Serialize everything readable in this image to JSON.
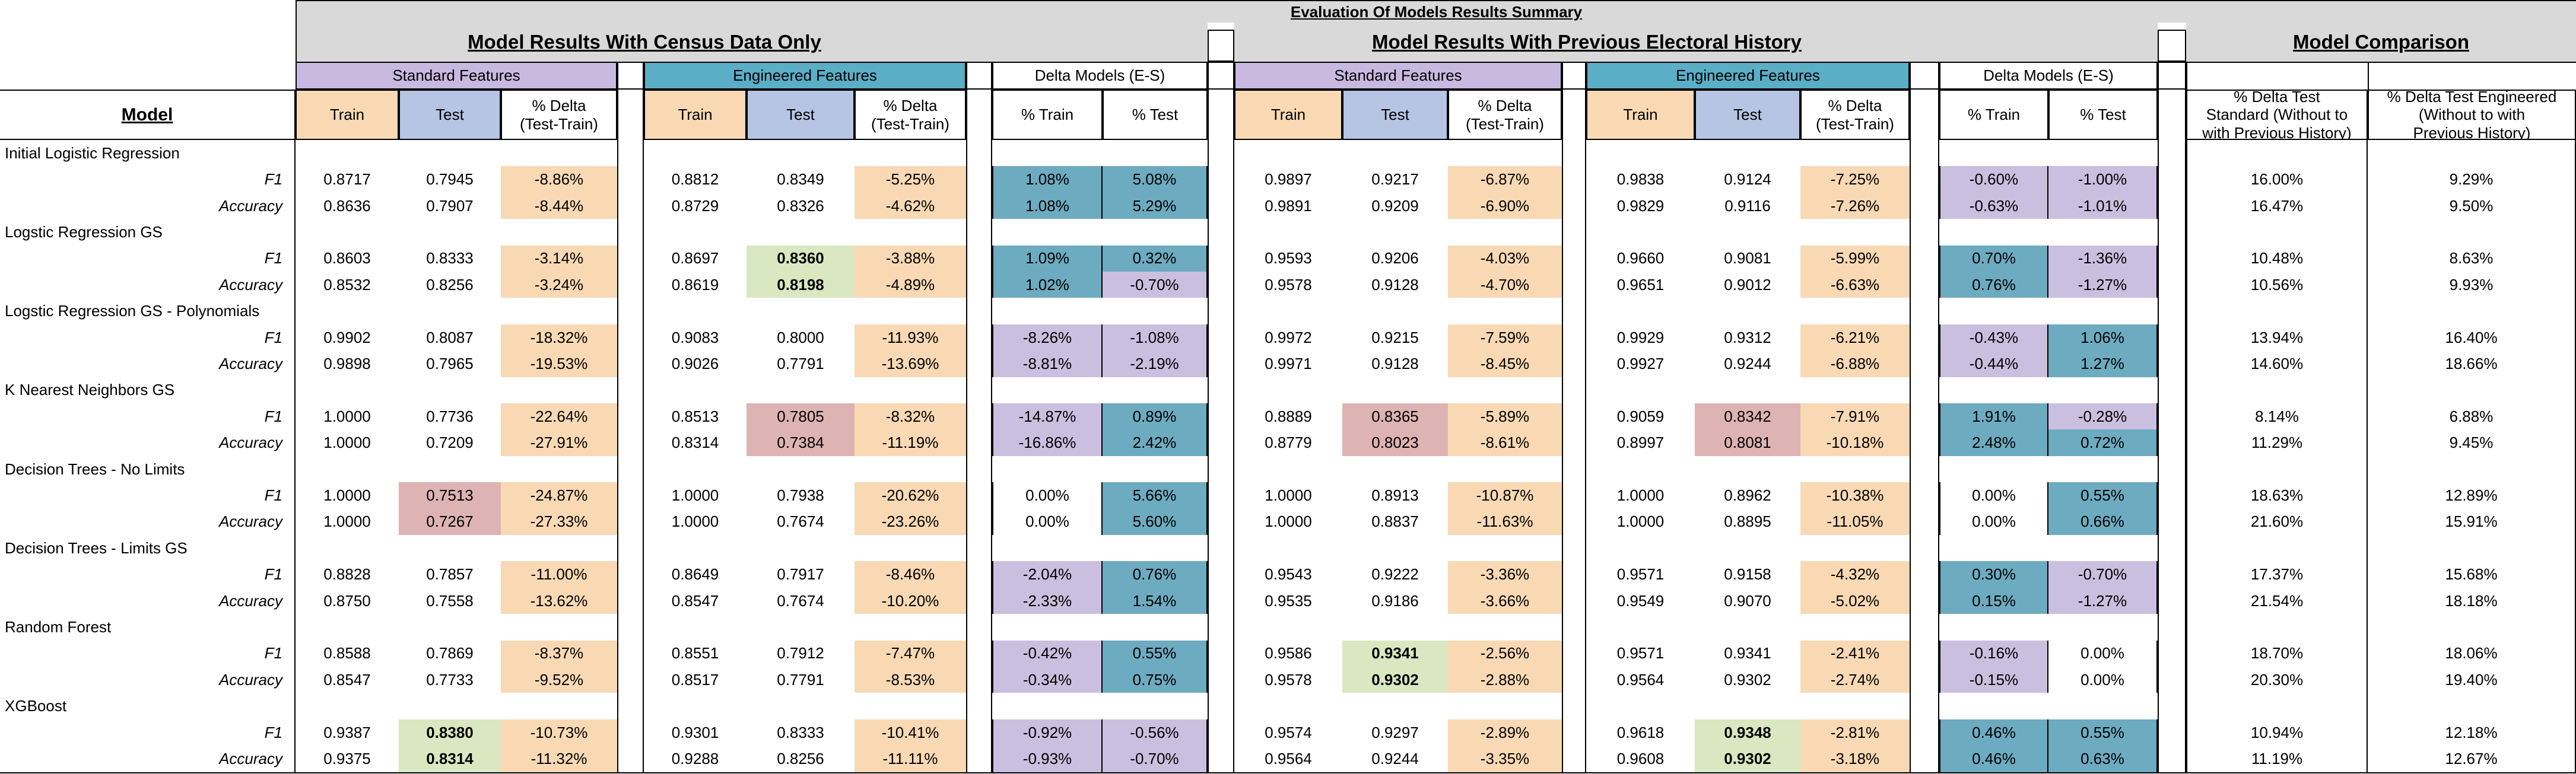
{
  "title": "Evaluation Of Models Results Summary",
  "sections": {
    "census": "Model Results With Census Data Only",
    "electoral": "Model Results With Previous Electoral History",
    "comparison": "Model Comparison"
  },
  "group_headers": {
    "standard": "Standard Features",
    "engineered": "Engineered Features",
    "delta_models": "Delta Models (E-S)"
  },
  "column_headers": {
    "model": "Model",
    "train": "Train",
    "test": "Test",
    "delta_line1": "% Delta",
    "delta_line2": "(Test-Train)",
    "pct_train": "% Train",
    "pct_test": "% Test",
    "cmp_std_line1": "% Delta Test",
    "cmp_std_line2": "Standard (Without to",
    "cmp_std_line3": "with Previous History)",
    "cmp_eng_line1": "% Delta Test Engineered",
    "cmp_eng_line2": "(Without to with",
    "cmp_eng_line3": "Previous History)"
  },
  "colors": {
    "title_band": "#d9d9d9",
    "standard_header": "#c9b9e0",
    "engineered_header": "#5aaec6",
    "train_header": "#f8d9b4",
    "test_header": "#b5c5e3",
    "delta_cell": "#f8d9b4",
    "delta_negative_model": "#cbbfe0",
    "delta_positive_model": "#6dabc0",
    "best_highlight": "#d9e8c0",
    "worst_highlight": "#deb3b3"
  },
  "models": [
    {
      "name": "Initial Logistic Regression",
      "rows": [
        {
          "metric": "F1",
          "census": {
            "std": [
              "0.8717",
              "0.7945",
              "-8.86%"
            ],
            "eng": [
              "0.8812",
              "0.8349",
              "-5.25%"
            ],
            "delta": [
              "1.08%",
              "5.08%"
            ]
          },
          "electoral": {
            "std": [
              "0.9897",
              "0.9217",
              "-6.87%"
            ],
            "eng": [
              "0.9838",
              "0.9124",
              "-7.25%"
            ],
            "delta": [
              "-0.60%",
              "-1.00%"
            ]
          },
          "cmp": [
            "16.00%",
            "9.29%"
          ]
        },
        {
          "metric": "Accuracy",
          "census": {
            "std": [
              "0.8636",
              "0.7907",
              "-8.44%"
            ],
            "eng": [
              "0.8729",
              "0.8326",
              "-4.62%"
            ],
            "delta": [
              "1.08%",
              "5.29%"
            ]
          },
          "electoral": {
            "std": [
              "0.9891",
              "0.9209",
              "-6.90%"
            ],
            "eng": [
              "0.9829",
              "0.9116",
              "-7.26%"
            ],
            "delta": [
              "-0.63%",
              "-1.01%"
            ]
          },
          "cmp": [
            "16.47%",
            "9.50%"
          ]
        }
      ]
    },
    {
      "name": "Logstic Regression GS",
      "rows": [
        {
          "metric": "F1",
          "census": {
            "std": [
              "0.8603",
              "0.8333",
              "-3.14%"
            ],
            "eng": [
              "0.8697",
              "0.8360",
              "-3.88%"
            ],
            "delta": [
              "1.09%",
              "0.32%"
            ]
          },
          "electoral": {
            "std": [
              "0.9593",
              "0.9206",
              "-4.03%"
            ],
            "eng": [
              "0.9660",
              "0.9081",
              "-5.99%"
            ],
            "delta": [
              "0.70%",
              "-1.36%"
            ]
          },
          "cmp": [
            "10.48%",
            "8.63%"
          ]
        },
        {
          "metric": "Accuracy",
          "census": {
            "std": [
              "0.8532",
              "0.8256",
              "-3.24%"
            ],
            "eng": [
              "0.8619",
              "0.8198",
              "-4.89%"
            ],
            "delta": [
              "1.02%",
              "-0.70%"
            ]
          },
          "electoral": {
            "std": [
              "0.9578",
              "0.9128",
              "-4.70%"
            ],
            "eng": [
              "0.9651",
              "0.9012",
              "-6.63%"
            ],
            "delta": [
              "0.76%",
              "-1.27%"
            ]
          },
          "cmp": [
            "10.56%",
            "9.93%"
          ]
        }
      ]
    },
    {
      "name": "Logstic Regression GS - Polynomials",
      "rows": [
        {
          "metric": "F1",
          "census": {
            "std": [
              "0.9902",
              "0.8087",
              "-18.32%"
            ],
            "eng": [
              "0.9083",
              "0.8000",
              "-11.93%"
            ],
            "delta": [
              "-8.26%",
              "-1.08%"
            ]
          },
          "electoral": {
            "std": [
              "0.9972",
              "0.9215",
              "-7.59%"
            ],
            "eng": [
              "0.9929",
              "0.9312",
              "-6.21%"
            ],
            "delta": [
              "-0.43%",
              "1.06%"
            ]
          },
          "cmp": [
            "13.94%",
            "16.40%"
          ]
        },
        {
          "metric": "Accuracy",
          "census": {
            "std": [
              "0.9898",
              "0.7965",
              "-19.53%"
            ],
            "eng": [
              "0.9026",
              "0.7791",
              "-13.69%"
            ],
            "delta": [
              "-8.81%",
              "-2.19%"
            ]
          },
          "electoral": {
            "std": [
              "0.9971",
              "0.9128",
              "-8.45%"
            ],
            "eng": [
              "0.9927",
              "0.9244",
              "-6.88%"
            ],
            "delta": [
              "-0.44%",
              "1.27%"
            ]
          },
          "cmp": [
            "14.60%",
            "18.66%"
          ]
        }
      ]
    },
    {
      "name": "K Nearest Neighbors GS",
      "rows": [
        {
          "metric": "F1",
          "census": {
            "std": [
              "1.0000",
              "0.7736",
              "-22.64%"
            ],
            "eng": [
              "0.8513",
              "0.7805",
              "-8.32%"
            ],
            "delta": [
              "-14.87%",
              "0.89%"
            ]
          },
          "electoral": {
            "std": [
              "0.8889",
              "0.8365",
              "-5.89%"
            ],
            "eng": [
              "0.9059",
              "0.8342",
              "-7.91%"
            ],
            "delta": [
              "1.91%",
              "-0.28%"
            ]
          },
          "cmp": [
            "8.14%",
            "6.88%"
          ]
        },
        {
          "metric": "Accuracy",
          "census": {
            "std": [
              "1.0000",
              "0.7209",
              "-27.91%"
            ],
            "eng": [
              "0.8314",
              "0.7384",
              "-11.19%"
            ],
            "delta": [
              "-16.86%",
              "2.42%"
            ]
          },
          "electoral": {
            "std": [
              "0.8779",
              "0.8023",
              "-8.61%"
            ],
            "eng": [
              "0.8997",
              "0.8081",
              "-10.18%"
            ],
            "delta": [
              "2.48%",
              "0.72%"
            ]
          },
          "cmp": [
            "11.29%",
            "9.45%"
          ]
        }
      ]
    },
    {
      "name": "Decision Trees - No Limits",
      "rows": [
        {
          "metric": "F1",
          "census": {
            "std": [
              "1.0000",
              "0.7513",
              "-24.87%"
            ],
            "eng": [
              "1.0000",
              "0.7938",
              "-20.62%"
            ],
            "delta": [
              "0.00%",
              "5.66%"
            ]
          },
          "electoral": {
            "std": [
              "1.0000",
              "0.8913",
              "-10.87%"
            ],
            "eng": [
              "1.0000",
              "0.8962",
              "-10.38%"
            ],
            "delta": [
              "0.00%",
              "0.55%"
            ]
          },
          "cmp": [
            "18.63%",
            "12.89%"
          ]
        },
        {
          "metric": "Accuracy",
          "census": {
            "std": [
              "1.0000",
              "0.7267",
              "-27.33%"
            ],
            "eng": [
              "1.0000",
              "0.7674",
              "-23.26%"
            ],
            "delta": [
              "0.00%",
              "5.60%"
            ]
          },
          "electoral": {
            "std": [
              "1.0000",
              "0.8837",
              "-11.63%"
            ],
            "eng": [
              "1.0000",
              "0.8895",
              "-11.05%"
            ],
            "delta": [
              "0.00%",
              "0.66%"
            ]
          },
          "cmp": [
            "21.60%",
            "15.91%"
          ]
        }
      ]
    },
    {
      "name": "Decision Trees -  Limits GS",
      "rows": [
        {
          "metric": "F1",
          "census": {
            "std": [
              "0.8828",
              "0.7857",
              "-11.00%"
            ],
            "eng": [
              "0.8649",
              "0.7917",
              "-8.46%"
            ],
            "delta": [
              "-2.04%",
              "0.76%"
            ]
          },
          "electoral": {
            "std": [
              "0.9543",
              "0.9222",
              "-3.36%"
            ],
            "eng": [
              "0.9571",
              "0.9158",
              "-4.32%"
            ],
            "delta": [
              "0.30%",
              "-0.70%"
            ]
          },
          "cmp": [
            "17.37%",
            "15.68%"
          ]
        },
        {
          "metric": "Accuracy",
          "census": {
            "std": [
              "0.8750",
              "0.7558",
              "-13.62%"
            ],
            "eng": [
              "0.8547",
              "0.7674",
              "-10.20%"
            ],
            "delta": [
              "-2.33%",
              "1.54%"
            ]
          },
          "electoral": {
            "std": [
              "0.9535",
              "0.9186",
              "-3.66%"
            ],
            "eng": [
              "0.9549",
              "0.9070",
              "-5.02%"
            ],
            "delta": [
              "0.15%",
              "-1.27%"
            ]
          },
          "cmp": [
            "21.54%",
            "18.18%"
          ]
        }
      ]
    },
    {
      "name": "Random Forest",
      "rows": [
        {
          "metric": "F1",
          "census": {
            "std": [
              "0.8588",
              "0.7869",
              "-8.37%"
            ],
            "eng": [
              "0.8551",
              "0.7912",
              "-7.47%"
            ],
            "delta": [
              "-0.42%",
              "0.55%"
            ]
          },
          "electoral": {
            "std": [
              "0.9586",
              "0.9341",
              "-2.56%"
            ],
            "eng": [
              "0.9571",
              "0.9341",
              "-2.41%"
            ],
            "delta": [
              "-0.16%",
              "0.00%"
            ]
          },
          "cmp": [
            "18.70%",
            "18.06%"
          ]
        },
        {
          "metric": "Accuracy",
          "census": {
            "std": [
              "0.8547",
              "0.7733",
              "-9.52%"
            ],
            "eng": [
              "0.8517",
              "0.7791",
              "-8.53%"
            ],
            "delta": [
              "-0.34%",
              "0.75%"
            ]
          },
          "electoral": {
            "std": [
              "0.9578",
              "0.9302",
              "-2.88%"
            ],
            "eng": [
              "0.9564",
              "0.9302",
              "-2.74%"
            ],
            "delta": [
              "-0.15%",
              "0.00%"
            ]
          },
          "cmp": [
            "20.30%",
            "19.40%"
          ]
        }
      ]
    },
    {
      "name": "XGBoost",
      "rows": [
        {
          "metric": "F1",
          "census": {
            "std": [
              "0.9387",
              "0.8380",
              "-10.73%"
            ],
            "eng": [
              "0.9301",
              "0.8333",
              "-10.41%"
            ],
            "delta": [
              "-0.92%",
              "-0.56%"
            ]
          },
          "electoral": {
            "std": [
              "0.9574",
              "0.9297",
              "-2.89%"
            ],
            "eng": [
              "0.9618",
              "0.9348",
              "-2.81%"
            ],
            "delta": [
              "0.46%",
              "0.55%"
            ]
          },
          "cmp": [
            "10.94%",
            "12.18%"
          ]
        },
        {
          "metric": "Accuracy",
          "census": {
            "std": [
              "0.9375",
              "0.8314",
              "-11.32%"
            ],
            "eng": [
              "0.9288",
              "0.8256",
              "-11.11%"
            ],
            "delta": [
              "-0.93%",
              "-0.70%"
            ]
          },
          "electoral": {
            "std": [
              "0.9564",
              "0.9244",
              "-3.35%"
            ],
            "eng": [
              "0.9608",
              "0.9302",
              "-3.18%"
            ],
            "delta": [
              "0.46%",
              "0.63%"
            ]
          },
          "cmp": [
            "11.19%",
            "12.67%"
          ]
        }
      ]
    }
  ]
}
